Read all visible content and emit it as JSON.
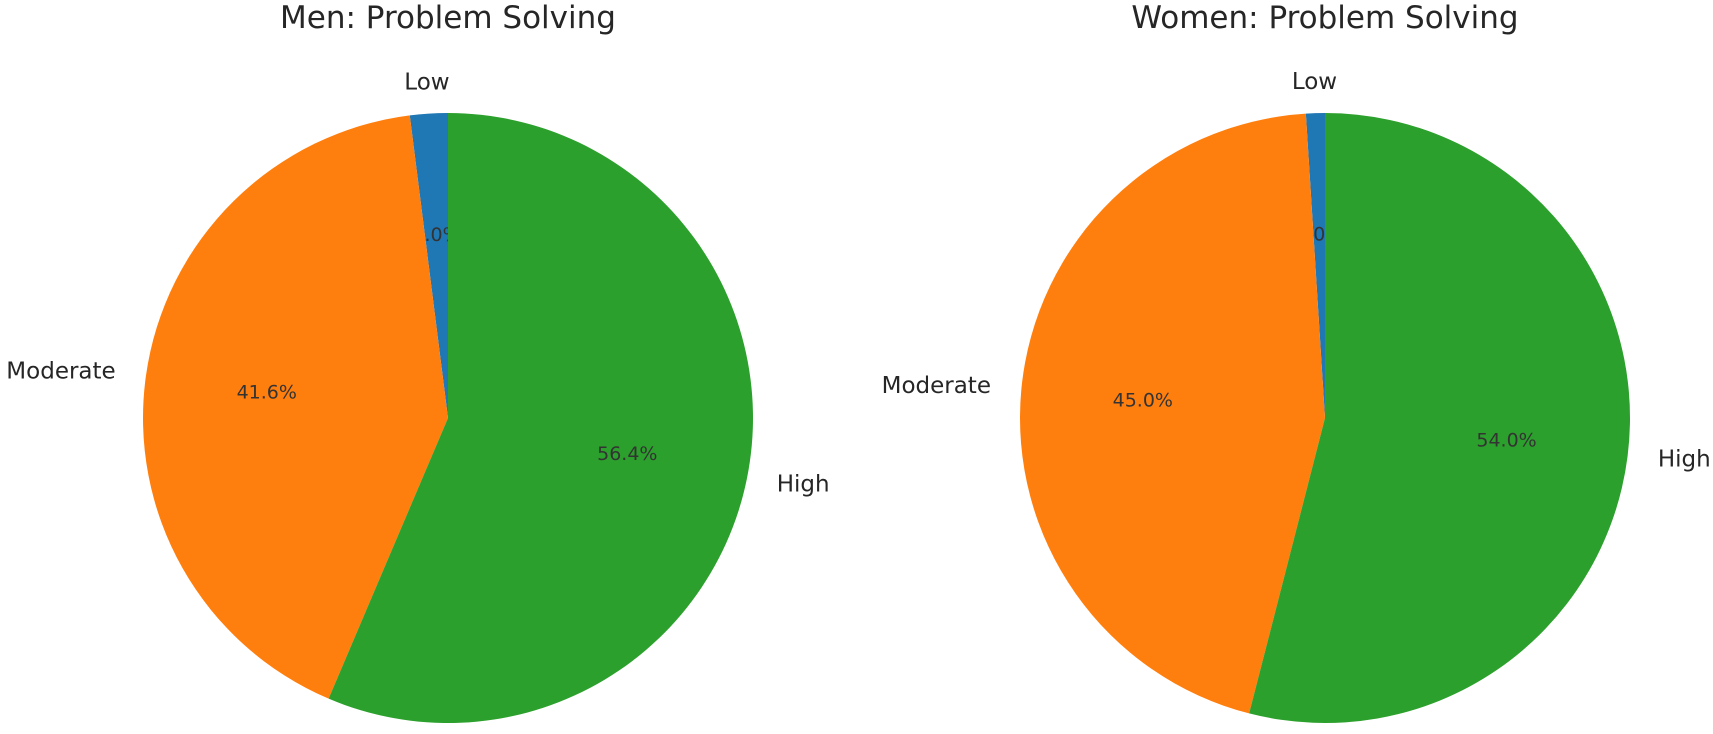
{
  "chart_data": [
    {
      "type": "pie",
      "title": "Men: Problem Solving",
      "categories": [
        "Low",
        "Moderate",
        "High"
      ],
      "values": [
        2.0,
        41.6,
        56.4
      ],
      "value_labels": [
        "2.0%",
        "41.6%",
        "56.4%"
      ],
      "colors": [
        "#1f77b4",
        "#ff7f0e",
        "#2ca02c"
      ],
      "start_angle_deg": 90,
      "direction": "counterclockwise",
      "legend": "none"
    },
    {
      "type": "pie",
      "title": "Women: Problem Solving",
      "categories": [
        "Low",
        "Moderate",
        "High"
      ],
      "values": [
        1.0,
        45.0,
        54.0
      ],
      "value_labels": [
        "1.0%",
        "45.0%",
        "54.0%"
      ],
      "colors": [
        "#1f77b4",
        "#ff7f0e",
        "#2ca02c"
      ],
      "start_angle_deg": 90,
      "direction": "counterclockwise",
      "legend": "none"
    }
  ]
}
